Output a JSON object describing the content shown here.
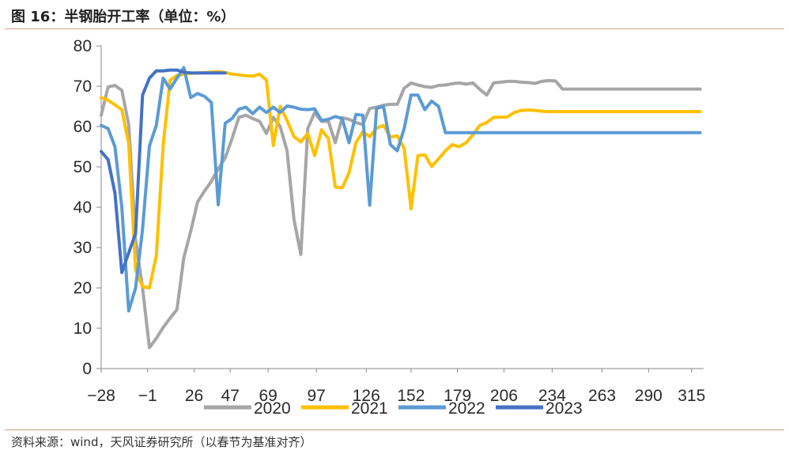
{
  "header": {
    "title": "图 16：半钢胎开工率（单位：%）"
  },
  "footer": {
    "source": "资料来源：wind，天风证券研究所（以春节为基准对齐）"
  },
  "chart_data": {
    "type": "line",
    "xlabel": "",
    "ylabel": "",
    "ylim": [
      0,
      80
    ],
    "yticks": [
      0,
      10,
      20,
      30,
      40,
      50,
      60,
      70,
      80
    ],
    "xlim": [
      -28,
      322
    ],
    "xticks": [
      -28,
      -1,
      26,
      47,
      69,
      97,
      126,
      152,
      179,
      206,
      234,
      263,
      290,
      315
    ],
    "grid": false,
    "legend": "bottom",
    "series": [
      {
        "name": "2020",
        "color": "#a6a6a6",
        "x": [
          -28,
          -24,
          -20,
          -16,
          -12,
          -8,
          -4,
          0,
          4,
          8,
          12,
          16,
          20,
          24,
          28,
          32,
          36,
          40,
          44,
          48,
          52,
          56,
          60,
          64,
          68,
          72,
          76,
          80,
          84,
          88,
          92,
          96,
          100,
          104,
          108,
          112,
          116,
          120,
          124,
          128,
          132,
          136,
          140,
          144,
          148,
          152,
          156,
          160,
          164,
          168,
          172,
          176,
          180,
          184,
          188,
          192,
          196,
          200,
          204,
          208,
          212,
          216,
          220,
          224,
          228,
          232,
          236,
          240,
          244,
          248,
          252,
          256,
          260,
          264,
          268,
          272,
          276,
          280,
          284,
          288,
          292,
          296,
          300,
          304,
          308,
          312,
          316,
          320
        ],
        "values": [
          62.8,
          69.8,
          70.2,
          69.0,
          60.5,
          32.0,
          20.0,
          5.2,
          7.5,
          10.2,
          12.5,
          14.6,
          27.5,
          34.0,
          41.3,
          44.0,
          46.4,
          49.5,
          52.2,
          57.0,
          62.3,
          62.8,
          62.0,
          61.3,
          58.3,
          62.3,
          60.0,
          54.0,
          37.0,
          28.3,
          59.5,
          63.5,
          61.3,
          61.3,
          56.0,
          62.2,
          61.8,
          61.0,
          60.5,
          64.5,
          64.8,
          65.3,
          65.5,
          65.5,
          69.5,
          70.8,
          70.3,
          69.9,
          69.7,
          70.2,
          70.3,
          70.6,
          70.8,
          70.5,
          70.8,
          69.2,
          67.8,
          70.8,
          71.0,
          71.2,
          71.2,
          71.0,
          70.9,
          70.7,
          71.2,
          71.4,
          71.3,
          69.3,
          69.3,
          69.3,
          69.3,
          69.3,
          69.3,
          69.3,
          69.3,
          69.3,
          69.3,
          69.3,
          69.3,
          69.3,
          69.3,
          69.3,
          69.3,
          69.3,
          69.3,
          69.3,
          69.3,
          69.3
        ]
      },
      {
        "name": "2021",
        "color": "#ffc000",
        "x": [
          -28,
          -24,
          -20,
          -16,
          -12,
          -8,
          -4,
          0,
          4,
          8,
          12,
          16,
          20,
          24,
          28,
          32,
          36,
          40,
          44,
          48,
          52,
          56,
          60,
          64,
          68,
          72,
          76,
          80,
          84,
          88,
          92,
          96,
          100,
          104,
          108,
          112,
          116,
          120,
          124,
          128,
          132,
          136,
          140,
          144,
          148,
          152,
          156,
          160,
          164,
          168,
          172,
          176,
          180,
          184,
          188,
          192,
          196,
          200,
          204,
          208,
          212,
          216,
          220,
          224,
          228,
          232,
          236,
          240,
          244,
          248,
          252,
          256,
          260,
          264,
          268,
          272,
          276,
          280,
          284,
          288,
          292,
          296,
          300,
          304,
          308,
          312,
          316,
          320
        ],
        "values": [
          67.2,
          66.5,
          65.4,
          64.2,
          55.8,
          24.5,
          20.3,
          20.0,
          28.0,
          55.4,
          71.5,
          72.6,
          73.0,
          73.2,
          73.3,
          73.4,
          73.5,
          73.6,
          73.4,
          73.0,
          72.8,
          72.6,
          72.5,
          73.0,
          71.5,
          55.3,
          65.0,
          61.5,
          57.5,
          56.2,
          58.3,
          52.8,
          59.2,
          57.0,
          45.0,
          44.8,
          48.5,
          56.0,
          58.7,
          57.5,
          59.6,
          60.3,
          57.4,
          57.7,
          54.6,
          39.6,
          52.8,
          53.0,
          50.1,
          52.0,
          54.0,
          55.5,
          55.0,
          56.0,
          58.0,
          60.3,
          61.0,
          62.3,
          62.3,
          62.4,
          63.5,
          64.0,
          64.1,
          64.0,
          63.8,
          63.7,
          63.7,
          63.7,
          63.7,
          63.7,
          63.7,
          63.7,
          63.7,
          63.7,
          63.7,
          63.7,
          63.7,
          63.7,
          63.7,
          63.7,
          63.7,
          63.7,
          63.7,
          63.7,
          63.7,
          63.7,
          63.7,
          63.7
        ]
      },
      {
        "name": "2022",
        "color": "#5b9bd5",
        "x": [
          -28,
          -24,
          -20,
          -16,
          -12,
          -8,
          -4,
          0,
          4,
          8,
          12,
          16,
          20,
          24,
          28,
          32,
          36,
          40,
          44,
          48,
          52,
          56,
          60,
          64,
          68,
          72,
          76,
          80,
          84,
          88,
          92,
          96,
          100,
          104,
          108,
          112,
          116,
          120,
          124,
          128,
          132,
          136,
          140,
          144,
          148,
          152,
          156,
          160,
          164,
          168,
          172,
          176,
          180,
          184,
          188,
          192,
          196,
          200,
          204,
          208,
          212,
          216,
          220,
          224,
          228,
          232,
          236,
          240,
          244,
          248,
          252,
          256,
          260,
          264,
          268,
          272,
          276,
          280,
          284,
          288,
          292,
          296,
          300,
          304,
          308,
          312,
          316,
          320
        ],
        "values": [
          60.3,
          59.5,
          55.0,
          40.0,
          14.3,
          20.0,
          34.5,
          55.2,
          60.3,
          72.0,
          69.3,
          72.0,
          74.6,
          67.2,
          68.2,
          67.5,
          66.0,
          40.6,
          60.8,
          62.0,
          64.3,
          64.8,
          63.2,
          64.8,
          63.5,
          64.8,
          63.5,
          65.1,
          64.8,
          64.3,
          64.2,
          64.4,
          61.5,
          61.8,
          62.5,
          62.0,
          56.0,
          63.0,
          62.8,
          40.5,
          64.5,
          65.0,
          55.5,
          54.0,
          59.5,
          67.8,
          67.8,
          64.2,
          66.3,
          65.0,
          58.5,
          58.5,
          58.5,
          58.5,
          58.5,
          58.5,
          58.5,
          58.5,
          58.5,
          58.5,
          58.5,
          58.5,
          58.5,
          58.5,
          58.5,
          58.5,
          58.5,
          58.5,
          58.5,
          58.5,
          58.5,
          58.5,
          58.5,
          58.5,
          58.5,
          58.5,
          58.5,
          58.5,
          58.5,
          58.5,
          58.5,
          58.5,
          58.5,
          58.5,
          58.5,
          58.5,
          58.5,
          58.5
        ]
      },
      {
        "name": "2023",
        "color": "#4472c4",
        "x": [
          -28,
          -24,
          -20,
          -16,
          -12,
          -8,
          -4,
          0,
          4,
          8,
          12,
          16,
          20,
          24,
          28,
          32,
          36,
          40,
          44
        ],
        "values": [
          53.8,
          51.8,
          43.5,
          23.8,
          28.7,
          33.5,
          67.8,
          72.0,
          73.8,
          73.8,
          74.0,
          74.0,
          73.5,
          73.3,
          73.3,
          73.3,
          73.3,
          73.3,
          73.3
        ]
      }
    ]
  }
}
